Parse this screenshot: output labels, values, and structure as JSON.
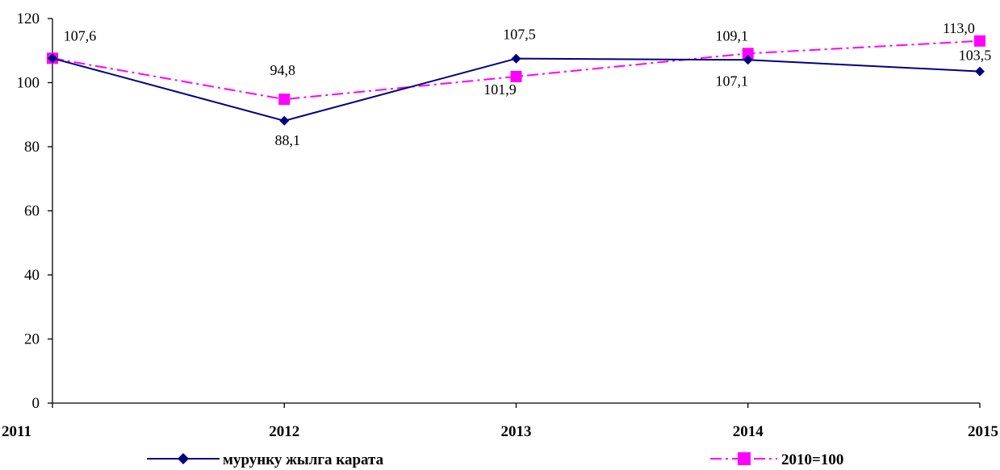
{
  "chart_data": {
    "type": "line",
    "categories": [
      "2011",
      "2012",
      "2013",
      "2014",
      "2015"
    ],
    "ylim": [
      0,
      120
    ],
    "yticks": [
      0,
      20,
      40,
      60,
      80,
      100,
      120
    ],
    "grid": false,
    "legend_position": "bottom",
    "series": [
      {
        "name": "мурунку жылга карата",
        "values": [
          107.6,
          88.1,
          107.5,
          107.1,
          103.5
        ],
        "labels": [
          "107,6",
          "88,1",
          "107,5",
          "107,1",
          "103,5"
        ],
        "color": "#000080",
        "marker": "diamond",
        "line_style": "solid"
      },
      {
        "name": "2010=100",
        "values": [
          107.6,
          94.8,
          101.9,
          109.1,
          113.0
        ],
        "labels": [
          "",
          "94,8",
          "101,9",
          "109,1",
          "113,0"
        ],
        "color": "#FF00FF",
        "marker": "square",
        "line_style": "dash-dot"
      }
    ]
  }
}
